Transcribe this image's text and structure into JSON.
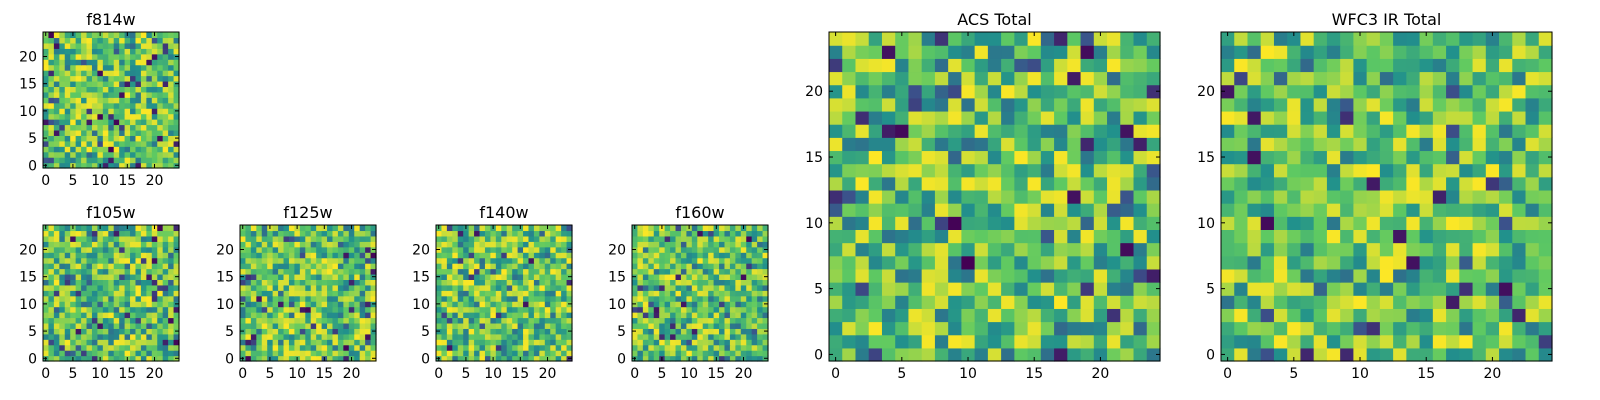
{
  "colormap": [
    "#440154",
    "#3b528b",
    "#21918c",
    "#5ec962",
    "#fde725"
  ],
  "chart_data": [
    {
      "type": "heatmap",
      "title": "f814w",
      "nx": 25,
      "ny": 25,
      "seed": 11,
      "xticks": [
        0,
        5,
        10,
        15,
        20
      ],
      "yticks": [
        0,
        5,
        10,
        15,
        20
      ],
      "xlim": [
        0,
        24
      ],
      "ylim": [
        0,
        24
      ],
      "grid": false
    },
    {
      "type": "heatmap",
      "title": "f105w",
      "nx": 25,
      "ny": 25,
      "seed": 23,
      "xticks": [
        0,
        5,
        10,
        15,
        20
      ],
      "yticks": [
        0,
        5,
        10,
        15,
        20
      ],
      "xlim": [
        0,
        24
      ],
      "ylim": [
        0,
        24
      ],
      "grid": false
    },
    {
      "type": "heatmap",
      "title": "f125w",
      "nx": 25,
      "ny": 25,
      "seed": 37,
      "xticks": [
        0,
        5,
        10,
        15,
        20
      ],
      "yticks": [
        0,
        5,
        10,
        15,
        20
      ],
      "xlim": [
        0,
        24
      ],
      "ylim": [
        0,
        24
      ],
      "grid": false
    },
    {
      "type": "heatmap",
      "title": "f140w",
      "nx": 25,
      "ny": 25,
      "seed": 41,
      "xticks": [
        0,
        5,
        10,
        15,
        20
      ],
      "yticks": [
        0,
        5,
        10,
        15,
        20
      ],
      "xlim": [
        0,
        24
      ],
      "ylim": [
        0,
        24
      ],
      "grid": false
    },
    {
      "type": "heatmap",
      "title": "f160w",
      "nx": 25,
      "ny": 25,
      "seed": 53,
      "xticks": [
        0,
        5,
        10,
        15,
        20
      ],
      "yticks": [
        0,
        5,
        10,
        15,
        20
      ],
      "xlim": [
        0,
        24
      ],
      "ylim": [
        0,
        24
      ],
      "grid": false
    },
    {
      "type": "heatmap",
      "title": "ACS Total",
      "nx": 25,
      "ny": 25,
      "seed": 67,
      "xticks": [
        0,
        5,
        10,
        15,
        20
      ],
      "yticks": [
        0,
        5,
        10,
        15,
        20
      ],
      "xlim": [
        0,
        24
      ],
      "ylim": [
        0,
        24
      ],
      "grid": false
    },
    {
      "type": "heatmap",
      "title": "WFC3 IR Total",
      "nx": 25,
      "ny": 25,
      "seed": 79,
      "xticks": [
        0,
        5,
        10,
        15,
        20
      ],
      "yticks": [
        0,
        5,
        10,
        15,
        20
      ],
      "xlim": [
        0,
        24
      ],
      "ylim": [
        0,
        24
      ],
      "grid": false
    }
  ]
}
